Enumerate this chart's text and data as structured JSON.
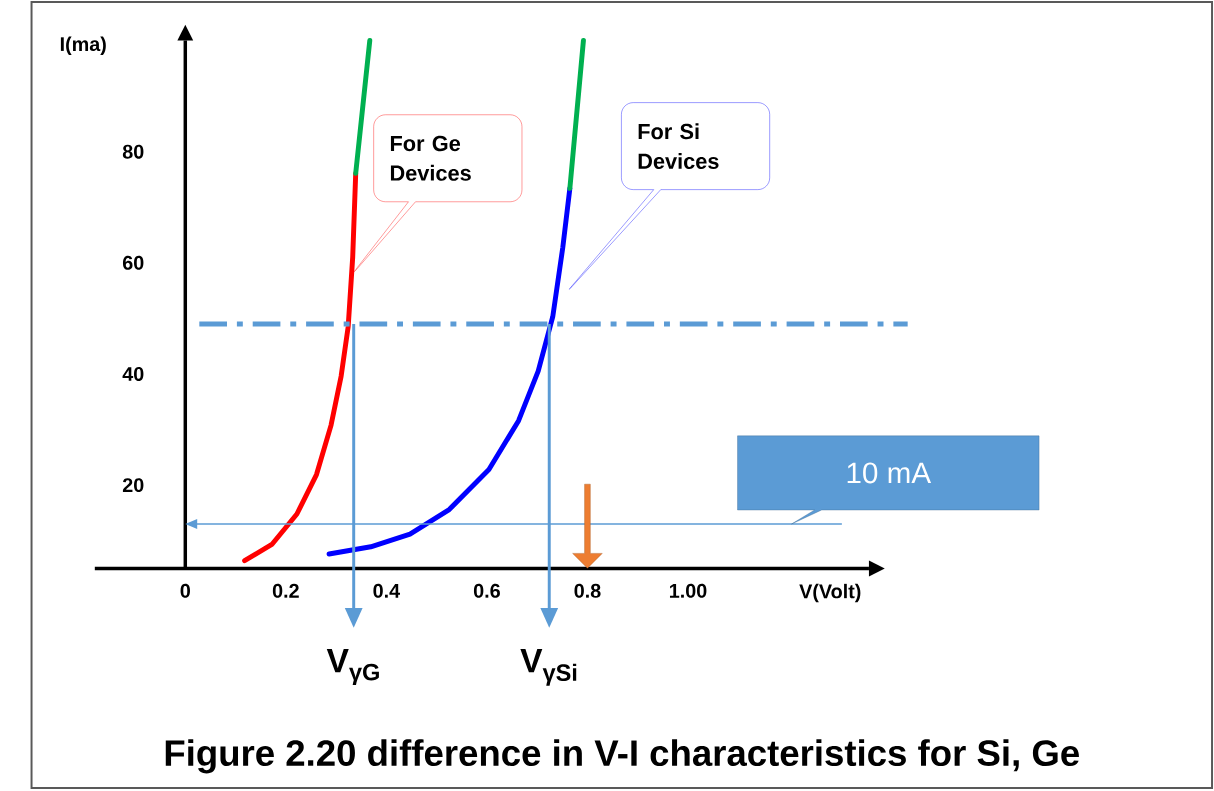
{
  "chart_data": {
    "type": "line",
    "title": "Figure 2.20 difference in V-I characteristics for Si, Ge",
    "xlabel": "V(Volt)",
    "ylabel": "I(ma)",
    "xlim": [
      -0.18,
      1.36
    ],
    "ylim": [
      5,
      100
    ],
    "xticks": [
      0,
      0.2,
      0.4,
      0.6,
      0.8,
      {
        "value": 1,
        "label": "1.00"
      }
    ],
    "yticks": [
      20,
      40,
      60,
      80
    ],
    "series": [
      {
        "color": "#ff0000",
        "x": [
          0.118,
          0.173,
          0.222,
          0.261,
          0.29,
          0.31,
          0.324,
          0.333,
          0.339
        ],
        "values": [
          6.4,
          9.4,
          14.8,
          21.9,
          30.8,
          39.6,
          48.5,
          61,
          76.1
        ]
      },
      {
        "color": "#0000ff",
        "x": [
          0.286,
          0.369,
          0.447,
          0.525,
          0.604,
          0.663,
          0.702,
          0.731,
          0.751,
          0.765
        ],
        "values": [
          7.6,
          8.9,
          11.2,
          15.6,
          22.8,
          31.6,
          40.5,
          50.3,
          62.8,
          73.4
        ]
      },
      {
        "color": "#00b050",
        "x": [
          0.339,
          0.367
        ],
        "values": [
          76.1,
          100
        ]
      },
      {
        "color": "#00b050",
        "x": [
          0.765,
          0.792
        ],
        "values": [
          73.4,
          100
        ]
      }
    ],
    "ref_lines": [
      {
        "axis": "y",
        "value": 49,
        "color": "#5b9bd5",
        "line_style": "dashdot"
      },
      {
        "axis": "y",
        "value": 13,
        "label": "10 mA",
        "color": "#5b9bd5"
      },
      {
        "axis": "x",
        "value": 0.335,
        "label": "V$_{γG}$",
        "color": "#5b9bd5"
      },
      {
        "axis": "x",
        "value": 0.724,
        "label": "V$_{γSi}$",
        "color": "#5b9bd5"
      },
      {
        "axis": "x",
        "value": 0.8,
        "color": "#ed7d31"
      }
    ],
    "annotations": [
      "For Ge Devices",
      "For Si Devices"
    ]
  }
}
